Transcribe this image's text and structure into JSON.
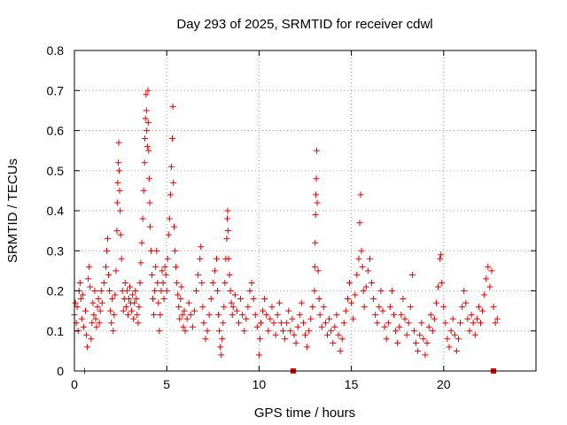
{
  "chart_data": {
    "type": "scatter",
    "title": "Day 293 of 2025, SRMTID for receiver cdwl",
    "xlabel": "GPS time / hours",
    "ylabel": "SRMTID / TECUs",
    "xlim": [
      0,
      25
    ],
    "ylim": [
      0,
      0.8
    ],
    "xticks": [
      0,
      5,
      10,
      15,
      20
    ],
    "yticks": [
      0,
      0.1,
      0.2,
      0.3,
      0.4,
      0.5,
      0.6,
      0.7,
      0.8
    ],
    "xtick_labels": [
      "0",
      "5",
      "10",
      "15",
      "20"
    ],
    "ytick_labels": [
      "0",
      "0.1",
      "0.2",
      "0.3",
      "0.4",
      "0.5",
      "0.6",
      "0.7",
      "0.8"
    ],
    "grid": true,
    "marker": "+",
    "marker_color": "#e00000",
    "baseline_markers": [
      {
        "x": 11.85,
        "y": 0
      },
      {
        "x": 22.7,
        "y": 0
      }
    ],
    "points": [
      [
        0.0,
        0.14
      ],
      [
        0.05,
        0.17
      ],
      [
        0.1,
        0.12
      ],
      [
        0.15,
        0.16
      ],
      [
        0.2,
        0.1
      ],
      [
        0.25,
        0.2
      ],
      [
        0.3,
        0.22
      ],
      [
        0.35,
        0.18
      ],
      [
        0.4,
        0.13
      ],
      [
        0.45,
        0.19
      ],
      [
        0.5,
        0.11
      ],
      [
        0.55,
        0.0
      ],
      [
        0.6,
        0.15
      ],
      [
        0.65,
        0.09
      ],
      [
        0.7,
        0.06
      ],
      [
        0.75,
        0.23
      ],
      [
        0.8,
        0.26
      ],
      [
        0.85,
        0.21
      ],
      [
        0.9,
        0.08
      ],
      [
        0.95,
        0.12
      ],
      [
        1.0,
        0.17
      ],
      [
        1.05,
        0.14
      ],
      [
        1.1,
        0.2
      ],
      [
        1.15,
        0.13
      ],
      [
        1.2,
        0.11
      ],
      [
        1.25,
        0.16
      ],
      [
        1.3,
        0.18
      ],
      [
        1.35,
        0.12
      ],
      [
        1.4,
        0.15
      ],
      [
        1.45,
        0.2
      ],
      [
        1.5,
        0.17
      ],
      [
        1.6,
        0.22
      ],
      [
        1.7,
        0.26
      ],
      [
        1.75,
        0.3
      ],
      [
        1.8,
        0.33
      ],
      [
        1.85,
        0.24
      ],
      [
        1.9,
        0.2
      ],
      [
        1.95,
        0.15
      ],
      [
        2.0,
        0.12
      ],
      [
        2.05,
        0.18
      ],
      [
        2.1,
        0.1
      ],
      [
        2.15,
        0.14
      ],
      [
        2.2,
        0.19
      ],
      [
        2.25,
        0.25
      ],
      [
        2.3,
        0.35
      ],
      [
        2.32,
        0.42
      ],
      [
        2.35,
        0.47
      ],
      [
        2.38,
        0.52
      ],
      [
        2.4,
        0.57
      ],
      [
        2.42,
        0.5
      ],
      [
        2.45,
        0.45
      ],
      [
        2.48,
        0.4
      ],
      [
        2.5,
        0.34
      ],
      [
        2.55,
        0.28
      ],
      [
        2.6,
        0.2
      ],
      [
        2.65,
        0.15
      ],
      [
        2.7,
        0.18
      ],
      [
        2.75,
        0.22
      ],
      [
        2.8,
        0.16
      ],
      [
        2.85,
        0.2
      ],
      [
        2.9,
        0.14
      ],
      [
        2.95,
        0.18
      ],
      [
        3.0,
        0.21
      ],
      [
        3.05,
        0.17
      ],
      [
        3.1,
        0.15
      ],
      [
        3.15,
        0.19
      ],
      [
        3.2,
        0.13
      ],
      [
        3.25,
        0.17
      ],
      [
        3.3,
        0.2
      ],
      [
        3.35,
        0.18
      ],
      [
        3.4,
        0.14
      ],
      [
        3.45,
        0.12
      ],
      [
        3.5,
        0.16
      ],
      [
        3.55,
        0.22
      ],
      [
        3.6,
        0.27
      ],
      [
        3.65,
        0.32
      ],
      [
        3.7,
        0.38
      ],
      [
        3.75,
        0.45
      ],
      [
        3.8,
        0.52
      ],
      [
        3.82,
        0.58
      ],
      [
        3.85,
        0.63
      ],
      [
        3.88,
        0.69
      ],
      [
        3.9,
        0.65
      ],
      [
        3.92,
        0.6
      ],
      [
        3.95,
        0.56
      ],
      [
        3.98,
        0.7
      ],
      [
        4.0,
        0.62
      ],
      [
        4.02,
        0.55
      ],
      [
        4.05,
        0.48
      ],
      [
        4.08,
        0.42
      ],
      [
        4.1,
        0.36
      ],
      [
        4.15,
        0.3
      ],
      [
        4.2,
        0.24
      ],
      [
        4.25,
        0.18
      ],
      [
        4.3,
        0.14
      ],
      [
        4.35,
        0.2
      ],
      [
        4.4,
        0.26
      ],
      [
        4.45,
        0.3
      ],
      [
        4.5,
        0.22
      ],
      [
        4.55,
        0.17
      ],
      [
        4.6,
        0.1
      ],
      [
        4.65,
        0.14
      ],
      [
        4.7,
        0.2
      ],
      [
        4.75,
        0.25
      ],
      [
        4.8,
        0.22
      ],
      [
        4.85,
        0.18
      ],
      [
        4.9,
        0.26
      ],
      [
        4.95,
        0.24
      ],
      [
        5.0,
        0.2
      ],
      [
        5.05,
        0.28
      ],
      [
        5.1,
        0.34
      ],
      [
        5.15,
        0.38
      ],
      [
        5.2,
        0.44
      ],
      [
        5.25,
        0.51
      ],
      [
        5.3,
        0.58
      ],
      [
        5.33,
        0.66
      ],
      [
        5.36,
        0.47
      ],
      [
        5.4,
        0.36
      ],
      [
        5.45,
        0.3
      ],
      [
        5.5,
        0.26
      ],
      [
        5.55,
        0.22
      ],
      [
        5.6,
        0.19
      ],
      [
        5.65,
        0.16
      ],
      [
        5.7,
        0.13
      ],
      [
        5.75,
        0.18
      ],
      [
        5.8,
        0.21
      ],
      [
        5.85,
        0.14
      ],
      [
        5.9,
        0.11
      ],
      [
        5.95,
        0.15
      ],
      [
        6.0,
        0.1
      ],
      [
        6.1,
        0.13
      ],
      [
        6.2,
        0.17
      ],
      [
        6.3,
        0.14
      ],
      [
        6.4,
        0.11
      ],
      [
        6.5,
        0.15
      ],
      [
        6.6,
        0.2
      ],
      [
        6.7,
        0.24
      ],
      [
        6.8,
        0.28
      ],
      [
        6.85,
        0.31
      ],
      [
        6.9,
        0.22
      ],
      [
        6.95,
        0.16
      ],
      [
        7.0,
        0.12
      ],
      [
        7.1,
        0.08
      ],
      [
        7.2,
        0.1
      ],
      [
        7.3,
        0.14
      ],
      [
        7.4,
        0.18
      ],
      [
        7.5,
        0.22
      ],
      [
        7.6,
        0.25
      ],
      [
        7.7,
        0.28
      ],
      [
        7.75,
        0.2
      ],
      [
        7.8,
        0.14
      ],
      [
        7.85,
        0.1
      ],
      [
        7.9,
        0.06
      ],
      [
        7.95,
        0.04
      ],
      [
        8.0,
        0.08
      ],
      [
        8.05,
        0.12
      ],
      [
        8.1,
        0.16
      ],
      [
        8.15,
        0.22
      ],
      [
        8.2,
        0.28
      ],
      [
        8.25,
        0.33
      ],
      [
        8.28,
        0.38
      ],
      [
        8.3,
        0.4
      ],
      [
        8.32,
        0.35
      ],
      [
        8.35,
        0.28
      ],
      [
        8.4,
        0.24
      ],
      [
        8.45,
        0.2
      ],
      [
        8.5,
        0.17
      ],
      [
        8.55,
        0.14
      ],
      [
        8.6,
        0.16
      ],
      [
        8.7,
        0.19
      ],
      [
        8.8,
        0.15
      ],
      [
        8.9,
        0.12
      ],
      [
        9.0,
        0.18
      ],
      [
        9.1,
        0.14
      ],
      [
        9.2,
        0.1
      ],
      [
        9.3,
        0.13
      ],
      [
        9.4,
        0.16
      ],
      [
        9.5,
        0.2
      ],
      [
        9.6,
        0.22
      ],
      [
        9.7,
        0.18
      ],
      [
        9.8,
        0.14
      ],
      [
        9.9,
        0.11
      ],
      [
        10.0,
        0.04
      ],
      [
        10.05,
        0.08
      ],
      [
        10.1,
        0.12
      ],
      [
        10.2,
        0.15
      ],
      [
        10.3,
        0.18
      ],
      [
        10.4,
        0.14
      ],
      [
        10.5,
        0.1
      ],
      [
        10.6,
        0.13
      ],
      [
        10.7,
        0.16
      ],
      [
        10.8,
        0.12
      ],
      [
        10.9,
        0.09
      ],
      [
        11.0,
        0.14
      ],
      [
        11.1,
        0.17
      ],
      [
        11.2,
        0.12
      ],
      [
        11.3,
        0.1
      ],
      [
        11.4,
        0.08
      ],
      [
        11.5,
        0.12
      ],
      [
        11.6,
        0.15
      ],
      [
        11.7,
        0.1
      ],
      [
        11.8,
        0.13
      ],
      [
        11.9,
        0.09
      ],
      [
        12.0,
        0.07
      ],
      [
        12.1,
        0.11
      ],
      [
        12.2,
        0.14
      ],
      [
        12.3,
        0.17
      ],
      [
        12.4,
        0.12
      ],
      [
        12.5,
        0.09
      ],
      [
        12.6,
        0.06
      ],
      [
        12.7,
        0.1
      ],
      [
        12.8,
        0.13
      ],
      [
        12.9,
        0.16
      ],
      [
        13.0,
        0.2
      ],
      [
        13.02,
        0.26
      ],
      [
        13.04,
        0.32
      ],
      [
        13.06,
        0.39
      ],
      [
        13.08,
        0.44
      ],
      [
        13.1,
        0.48
      ],
      [
        13.12,
        0.55
      ],
      [
        13.15,
        0.42
      ],
      [
        13.2,
        0.25
      ],
      [
        13.25,
        0.18
      ],
      [
        13.3,
        0.14
      ],
      [
        13.4,
        0.11
      ],
      [
        13.5,
        0.16
      ],
      [
        13.6,
        0.12
      ],
      [
        13.7,
        0.09
      ],
      [
        13.8,
        0.13
      ],
      [
        13.9,
        0.1
      ],
      [
        14.0,
        0.07
      ],
      [
        14.1,
        0.11
      ],
      [
        14.2,
        0.14
      ],
      [
        14.3,
        0.09
      ],
      [
        14.4,
        0.05
      ],
      [
        14.5,
        0.08
      ],
      [
        14.6,
        0.12
      ],
      [
        14.7,
        0.15
      ],
      [
        14.8,
        0.18
      ],
      [
        14.9,
        0.22
      ],
      [
        15.0,
        0.17
      ],
      [
        15.1,
        0.13
      ],
      [
        15.2,
        0.19
      ],
      [
        15.3,
        0.24
      ],
      [
        15.4,
        0.28
      ],
      [
        15.45,
        0.37
      ],
      [
        15.5,
        0.44
      ],
      [
        15.55,
        0.3
      ],
      [
        15.6,
        0.26
      ],
      [
        15.65,
        0.2
      ],
      [
        15.7,
        0.16
      ],
      [
        15.8,
        0.21
      ],
      [
        15.9,
        0.25
      ],
      [
        16.0,
        0.28
      ],
      [
        16.1,
        0.22
      ],
      [
        16.2,
        0.18
      ],
      [
        16.3,
        0.14
      ],
      [
        16.4,
        0.12
      ],
      [
        16.5,
        0.16
      ],
      [
        16.6,
        0.2
      ],
      [
        16.7,
        0.15
      ],
      [
        16.8,
        0.11
      ],
      [
        16.9,
        0.08
      ],
      [
        17.0,
        0.12
      ],
      [
        17.1,
        0.16
      ],
      [
        17.2,
        0.2
      ],
      [
        17.3,
        0.14
      ],
      [
        17.4,
        0.1
      ],
      [
        17.5,
        0.07
      ],
      [
        17.6,
        0.11
      ],
      [
        17.7,
        0.14
      ],
      [
        17.8,
        0.18
      ],
      [
        17.9,
        0.13
      ],
      [
        18.0,
        0.09
      ],
      [
        18.1,
        0.12
      ],
      [
        18.2,
        0.16
      ],
      [
        18.3,
        0.24
      ],
      [
        18.4,
        0.1
      ],
      [
        18.5,
        0.07
      ],
      [
        18.6,
        0.05
      ],
      [
        18.7,
        0.09
      ],
      [
        18.8,
        0.12
      ],
      [
        18.9,
        0.08
      ],
      [
        19.0,
        0.04
      ],
      [
        19.1,
        0.07
      ],
      [
        19.2,
        0.11
      ],
      [
        19.3,
        0.14
      ],
      [
        19.4,
        0.1
      ],
      [
        19.5,
        0.13
      ],
      [
        19.6,
        0.17
      ],
      [
        19.7,
        0.21
      ],
      [
        19.8,
        0.28
      ],
      [
        19.85,
        0.29
      ],
      [
        19.9,
        0.22
      ],
      [
        20.0,
        0.16
      ],
      [
        20.1,
        0.12
      ],
      [
        20.2,
        0.08
      ],
      [
        20.3,
        0.06
      ],
      [
        20.4,
        0.1
      ],
      [
        20.5,
        0.13
      ],
      [
        20.6,
        0.09
      ],
      [
        20.7,
        0.05
      ],
      [
        20.8,
        0.08
      ],
      [
        20.9,
        0.12
      ],
      [
        21.0,
        0.16
      ],
      [
        21.1,
        0.2
      ],
      [
        21.2,
        0.17
      ],
      [
        21.3,
        0.13
      ],
      [
        21.4,
        0.1
      ],
      [
        21.5,
        0.14
      ],
      [
        21.6,
        0.12
      ],
      [
        21.7,
        0.09
      ],
      [
        21.8,
        0.13
      ],
      [
        21.9,
        0.16
      ],
      [
        22.0,
        0.12
      ],
      [
        22.1,
        0.15
      ],
      [
        22.2,
        0.19
      ],
      [
        22.3,
        0.23
      ],
      [
        22.4,
        0.26
      ],
      [
        22.5,
        0.21
      ],
      [
        22.6,
        0.25
      ],
      [
        22.7,
        0.16
      ],
      [
        22.8,
        0.12
      ],
      [
        22.9,
        0.13
      ]
    ]
  }
}
